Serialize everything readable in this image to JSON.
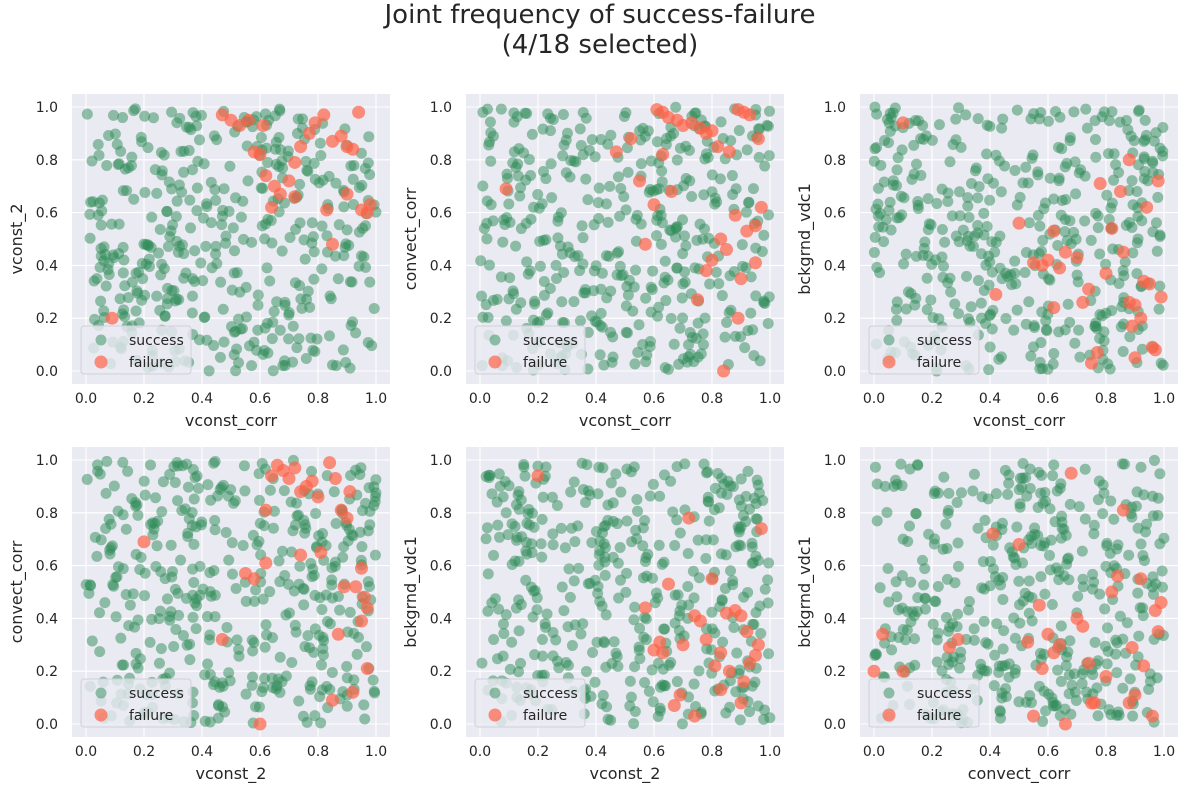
{
  "title": {
    "line1": "Joint frequency of success-failure",
    "line2": "(4/18 selected)"
  },
  "colors": {
    "success": "#2e8b57",
    "failure": "#ff6347",
    "plot_background": "#eaeaf2",
    "grid": "#ffffff"
  },
  "chart_data": [
    {
      "type": "scatter",
      "xlabel": "vconst_corr",
      "ylabel": "vconst_2",
      "xlim": [
        0,
        1
      ],
      "ylim": [
        0,
        1
      ],
      "xticks": [
        "0.0",
        "0.2",
        "0.4",
        "0.6",
        "0.8",
        "1.0"
      ],
      "yticks": [
        "0.0",
        "0.2",
        "0.4",
        "0.6",
        "0.8",
        "1.0"
      ],
      "grid": true,
      "legend": "lower-left",
      "series": [
        {
          "name": "success",
          "color": "#2e8b57",
          "points": "seeded:101:420",
          "n_points": 420
        },
        {
          "name": "failure",
          "color": "#ff6347",
          "points": [
            [
              0.47,
              0.97
            ],
            [
              0.5,
              0.95
            ],
            [
              0.53,
              0.93
            ],
            [
              0.56,
              0.95
            ],
            [
              0.6,
              0.82
            ],
            [
              0.62,
              0.74
            ],
            [
              0.65,
              0.7
            ],
            [
              0.67,
              0.67
            ],
            [
              0.7,
              0.72
            ],
            [
              0.72,
              0.79
            ],
            [
              0.74,
              0.85
            ],
            [
              0.77,
              0.9
            ],
            [
              0.79,
              0.94
            ],
            [
              0.82,
              0.97
            ],
            [
              0.85,
              0.87
            ],
            [
              0.88,
              0.89
            ],
            [
              0.9,
              0.85
            ],
            [
              0.92,
              0.84
            ],
            [
              0.95,
              0.61
            ],
            [
              0.97,
              0.6
            ],
            [
              0.9,
              0.67
            ],
            [
              0.83,
              0.61
            ],
            [
              0.85,
              0.48
            ],
            [
              0.94,
              0.98
            ],
            [
              0.64,
              0.62
            ],
            [
              0.58,
              0.83
            ],
            [
              0.61,
              0.93
            ],
            [
              0.72,
              0.66
            ],
            [
              0.09,
              0.2
            ],
            [
              0.98,
              0.63
            ]
          ]
        }
      ]
    },
    {
      "type": "scatter",
      "xlabel": "vconst_corr",
      "ylabel": "convect_corr",
      "xlim": [
        0,
        1
      ],
      "ylim": [
        0,
        1
      ],
      "xticks": [
        "0.0",
        "0.2",
        "0.4",
        "0.6",
        "0.8",
        "1.0"
      ],
      "yticks": [
        "0.0",
        "0.2",
        "0.4",
        "0.6",
        "0.8",
        "1.0"
      ],
      "grid": true,
      "legend": "lower-left",
      "series": [
        {
          "name": "success",
          "color": "#2e8b57",
          "points": "seeded:202:420",
          "n_points": 420
        },
        {
          "name": "failure",
          "color": "#ff6347",
          "points": [
            [
              0.09,
              0.69
            ],
            [
              0.47,
              0.83
            ],
            [
              0.52,
              0.88
            ],
            [
              0.55,
              0.72
            ],
            [
              0.6,
              0.63
            ],
            [
              0.61,
              0.99
            ],
            [
              0.63,
              0.98
            ],
            [
              0.65,
              0.96
            ],
            [
              0.68,
              0.95
            ],
            [
              0.7,
              0.93
            ],
            [
              0.73,
              0.94
            ],
            [
              0.76,
              0.92
            ],
            [
              0.78,
              0.9
            ],
            [
              0.8,
              0.91
            ],
            [
              0.82,
              0.85
            ],
            [
              0.86,
              0.83
            ],
            [
              0.89,
              0.99
            ],
            [
              0.91,
              0.98
            ],
            [
              0.93,
              0.97
            ],
            [
              0.96,
              0.88
            ],
            [
              0.75,
              0.27
            ],
            [
              0.78,
              0.38
            ],
            [
              0.8,
              0.42
            ],
            [
              0.83,
              0.5
            ],
            [
              0.85,
              0.46
            ],
            [
              0.88,
              0.59
            ],
            [
              0.9,
              0.35
            ],
            [
              0.92,
              0.53
            ],
            [
              0.95,
              0.55
            ],
            [
              0.97,
              0.62
            ],
            [
              0.66,
              0.68
            ],
            [
              0.63,
              0.82
            ],
            [
              0.57,
              0.48
            ],
            [
              0.84,
              0.0
            ],
            [
              0.89,
              0.2
            ],
            [
              0.95,
              0.41
            ]
          ]
        }
      ]
    },
    {
      "type": "scatter",
      "xlabel": "vconst_corr",
      "ylabel": "bckgrnd_vdc1",
      "xlim": [
        0,
        1
      ],
      "ylim": [
        0,
        1
      ],
      "xticks": [
        "0.0",
        "0.2",
        "0.4",
        "0.6",
        "0.8",
        "1.0"
      ],
      "yticks": [
        "0.0",
        "0.2",
        "0.4",
        "0.6",
        "0.8",
        "1.0"
      ],
      "grid": true,
      "legend": "lower-left",
      "series": [
        {
          "name": "success",
          "color": "#2e8b57",
          "points": "seeded:303:420",
          "n_points": 420
        },
        {
          "name": "failure",
          "color": "#ff6347",
          "points": [
            [
              0.1,
              0.94
            ],
            [
              0.42,
              0.29
            ],
            [
              0.5,
              0.56
            ],
            [
              0.55,
              0.41
            ],
            [
              0.58,
              0.4
            ],
            [
              0.6,
              0.42
            ],
            [
              0.62,
              0.53
            ],
            [
              0.64,
              0.39
            ],
            [
              0.66,
              0.45
            ],
            [
              0.7,
              0.43
            ],
            [
              0.72,
              0.26
            ],
            [
              0.74,
              0.31
            ],
            [
              0.75,
              0.03
            ],
            [
              0.77,
              0.07
            ],
            [
              0.8,
              0.37
            ],
            [
              0.82,
              0.54
            ],
            [
              0.85,
              0.68
            ],
            [
              0.86,
              0.45
            ],
            [
              0.88,
              0.26
            ],
            [
              0.89,
              0.17
            ],
            [
              0.9,
              0.25
            ],
            [
              0.92,
              0.2
            ],
            [
              0.93,
              0.34
            ],
            [
              0.95,
              0.33
            ],
            [
              0.96,
              0.09
            ],
            [
              0.97,
              0.08
            ],
            [
              0.98,
              0.72
            ],
            [
              0.99,
              0.28
            ],
            [
              0.88,
              0.8
            ],
            [
              0.78,
              0.71
            ],
            [
              0.62,
              0.24
            ],
            [
              0.94,
              0.62
            ],
            [
              0.9,
              0.05
            ]
          ]
        }
      ]
    },
    {
      "type": "scatter",
      "xlabel": "vconst_2",
      "ylabel": "convect_corr",
      "xlim": [
        0,
        1
      ],
      "ylim": [
        0,
        1
      ],
      "xticks": [
        "0.0",
        "0.2",
        "0.4",
        "0.6",
        "0.8",
        "1.0"
      ],
      "yticks": [
        "0.0",
        "0.2",
        "0.4",
        "0.6",
        "0.8",
        "1.0"
      ],
      "grid": true,
      "legend": "lower-left",
      "series": [
        {
          "name": "success",
          "color": "#2e8b57",
          "points": "seeded:404:420",
          "n_points": 420
        },
        {
          "name": "failure",
          "color": "#ff6347",
          "points": [
            [
              0.2,
              0.69
            ],
            [
              0.47,
              0.32
            ],
            [
              0.55,
              0.57
            ],
            [
              0.58,
              0.55
            ],
            [
              0.6,
              0.0
            ],
            [
              0.62,
              0.81
            ],
            [
              0.64,
              0.94
            ],
            [
              0.66,
              0.98
            ],
            [
              0.68,
              0.96
            ],
            [
              0.7,
              0.93
            ],
            [
              0.72,
              0.97
            ],
            [
              0.74,
              0.88
            ],
            [
              0.76,
              0.9
            ],
            [
              0.78,
              0.92
            ],
            [
              0.8,
              0.86
            ],
            [
              0.84,
              0.99
            ],
            [
              0.86,
              0.93
            ],
            [
              0.88,
              0.81
            ],
            [
              0.9,
              0.78
            ],
            [
              0.91,
              0.88
            ],
            [
              0.93,
              0.52
            ],
            [
              0.95,
              0.39
            ],
            [
              0.96,
              0.48
            ],
            [
              0.97,
              0.44
            ],
            [
              0.87,
              0.34
            ],
            [
              0.81,
              0.65
            ],
            [
              0.74,
              0.64
            ],
            [
              0.85,
              0.09
            ],
            [
              0.62,
              0.61
            ],
            [
              0.92,
              0.12
            ],
            [
              0.97,
              0.21
            ],
            [
              0.89,
              0.52
            ],
            [
              0.95,
              0.59
            ]
          ]
        }
      ]
    },
    {
      "type": "scatter",
      "xlabel": "vconst_2",
      "ylabel": "bckgrnd_vdc1",
      "xlim": [
        0,
        1
      ],
      "ylim": [
        0,
        1
      ],
      "xticks": [
        "0.0",
        "0.2",
        "0.4",
        "0.6",
        "0.8",
        "1.0"
      ],
      "yticks": [
        "0.0",
        "0.2",
        "0.4",
        "0.6",
        "0.8",
        "1.0"
      ],
      "grid": true,
      "legend": "lower-left",
      "series": [
        {
          "name": "success",
          "color": "#2e8b57",
          "points": "seeded:505:420",
          "n_points": 420
        },
        {
          "name": "failure",
          "color": "#ff6347",
          "points": [
            [
              0.2,
              0.94
            ],
            [
              0.57,
              0.44
            ],
            [
              0.6,
              0.28
            ],
            [
              0.62,
              0.31
            ],
            [
              0.63,
              0.27
            ],
            [
              0.65,
              0.53
            ],
            [
              0.67,
              0.07
            ],
            [
              0.69,
              0.11
            ],
            [
              0.7,
              0.3
            ],
            [
              0.72,
              0.78
            ],
            [
              0.74,
              0.41
            ],
            [
              0.76,
              0.39
            ],
            [
              0.78,
              0.32
            ],
            [
              0.8,
              0.55
            ],
            [
              0.81,
              0.22
            ],
            [
              0.83,
              0.13
            ],
            [
              0.85,
              0.42
            ],
            [
              0.86,
              0.2
            ],
            [
              0.88,
              0.43
            ],
            [
              0.9,
              0.41
            ],
            [
              0.91,
              0.16
            ],
            [
              0.92,
              0.35
            ],
            [
              0.93,
              0.23
            ],
            [
              0.95,
              0.26
            ],
            [
              0.96,
              0.3
            ],
            [
              0.97,
              0.74
            ],
            [
              0.74,
              0.03
            ],
            [
              0.9,
              0.08
            ],
            [
              0.83,
              0.27
            ]
          ]
        }
      ]
    },
    {
      "type": "scatter",
      "xlabel": "convect_corr",
      "ylabel": "bckgrnd_vdc1",
      "xlim": [
        0,
        1
      ],
      "ylim": [
        0,
        1
      ],
      "xticks": [
        "0.0",
        "0.2",
        "0.4",
        "0.6",
        "0.8",
        "1.0"
      ],
      "yticks": [
        "0.0",
        "0.2",
        "0.4",
        "0.6",
        "0.8",
        "1.0"
      ],
      "grid": true,
      "legend": "lower-left",
      "series": [
        {
          "name": "success",
          "color": "#2e8b57",
          "points": "seeded:606:420",
          "n_points": 420
        },
        {
          "name": "failure",
          "color": "#ff6347",
          "points": [
            [
              0.0,
              0.2
            ],
            [
              0.03,
              0.34
            ],
            [
              0.1,
              0.2
            ],
            [
              0.26,
              0.29
            ],
            [
              0.29,
              0.32
            ],
            [
              0.41,
              0.72
            ],
            [
              0.5,
              0.68
            ],
            [
              0.53,
              0.31
            ],
            [
              0.55,
              0.03
            ],
            [
              0.57,
              0.45
            ],
            [
              0.58,
              0.21
            ],
            [
              0.6,
              0.34
            ],
            [
              0.62,
              0.27
            ],
            [
              0.64,
              0.3
            ],
            [
              0.66,
              0.0
            ],
            [
              0.68,
              0.95
            ],
            [
              0.7,
              0.4
            ],
            [
              0.72,
              0.37
            ],
            [
              0.74,
              0.23
            ],
            [
              0.76,
              0.08
            ],
            [
              0.8,
              0.18
            ],
            [
              0.82,
              0.5
            ],
            [
              0.84,
              0.56
            ],
            [
              0.86,
              0.81
            ],
            [
              0.88,
              0.08
            ],
            [
              0.9,
              0.11
            ],
            [
              0.92,
              0.55
            ],
            [
              0.93,
              0.22
            ],
            [
              0.96,
              0.03
            ],
            [
              0.97,
              0.43
            ],
            [
              0.98,
              0.35
            ],
            [
              0.99,
              0.46
            ],
            [
              0.75,
              0.08
            ],
            [
              0.89,
              0.29
            ]
          ]
        }
      ]
    }
  ],
  "legend": {
    "success_label": "success",
    "failure_label": "failure"
  }
}
